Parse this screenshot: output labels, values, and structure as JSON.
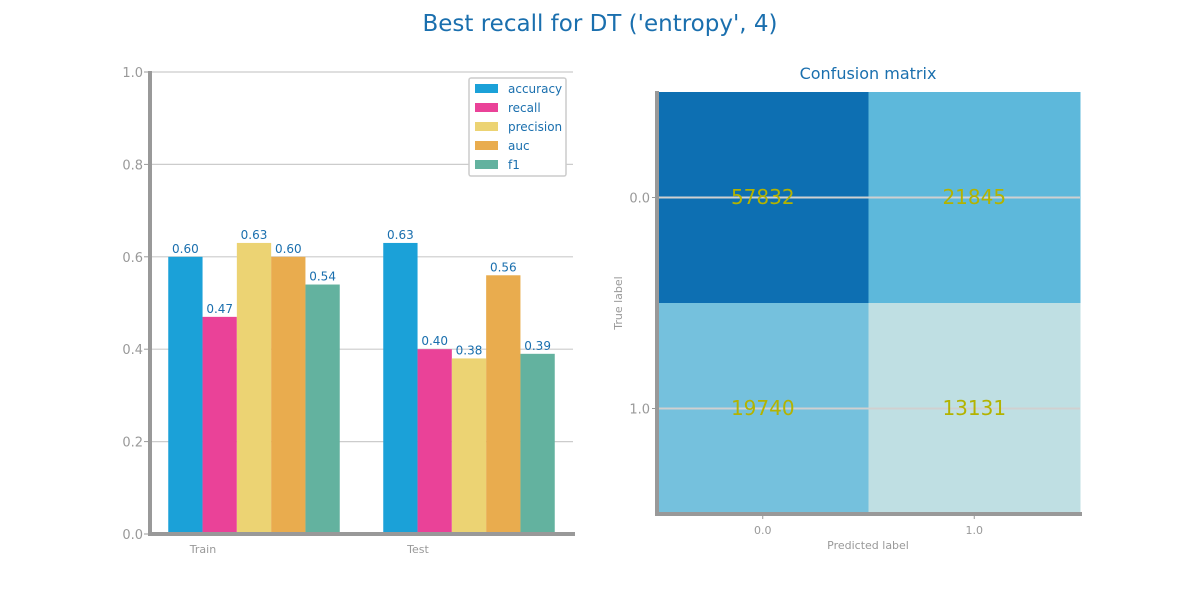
{
  "figure": {
    "title": "Best recall for DT ('entropy', 4)"
  },
  "colors": {
    "title": "#1a6fae",
    "axis": "#999999",
    "grid": "#cccccc",
    "label": "#1a6fae",
    "cm_text": "#b3b300",
    "series": [
      "#1ba1d8",
      "#ea4298",
      "#ecd373",
      "#e9ac4e",
      "#63b29f"
    ],
    "cm_cells": [
      [
        "#0d6fb2",
        "#5db8db"
      ],
      [
        "#75c1dd",
        "#bfdfe3"
      ]
    ]
  },
  "chart_data": [
    {
      "type": "bar",
      "title": "",
      "categories": [
        "Train",
        "Test"
      ],
      "series": [
        {
          "name": "accuracy",
          "values": [
            0.6,
            0.63
          ]
        },
        {
          "name": "recall",
          "values": [
            0.47,
            0.4
          ]
        },
        {
          "name": "precision",
          "values": [
            0.63,
            0.38
          ]
        },
        {
          "name": "auc",
          "values": [
            0.6,
            0.56
          ]
        },
        {
          "name": "f1",
          "values": [
            0.54,
            0.39
          ]
        }
      ],
      "data_labels": [
        [
          "0.60",
          "0.63"
        ],
        [
          "0.47",
          "0.40"
        ],
        [
          "0.63",
          "0.38"
        ],
        [
          "0.60",
          "0.56"
        ],
        [
          "0.54",
          "0.39"
        ]
      ],
      "ylim": [
        0,
        1.0
      ],
      "yticks": [
        0.0,
        0.2,
        0.4,
        0.6,
        0.8,
        1.0
      ],
      "ytick_labels": [
        "0.0",
        "0.2",
        "0.4",
        "0.6",
        "0.8",
        "1.0"
      ],
      "xlabel": "",
      "ylabel": "",
      "grid": true,
      "legend": "top-right"
    },
    {
      "type": "heatmap",
      "title": "Confusion matrix",
      "xlabel": "Predicted label",
      "ylabel": "True label",
      "xtick_labels": [
        "0.0",
        "1.0"
      ],
      "ytick_labels": [
        "0.0",
        "1.0"
      ],
      "values": [
        [
          57832,
          21845
        ],
        [
          19740,
          13131
        ]
      ]
    }
  ]
}
